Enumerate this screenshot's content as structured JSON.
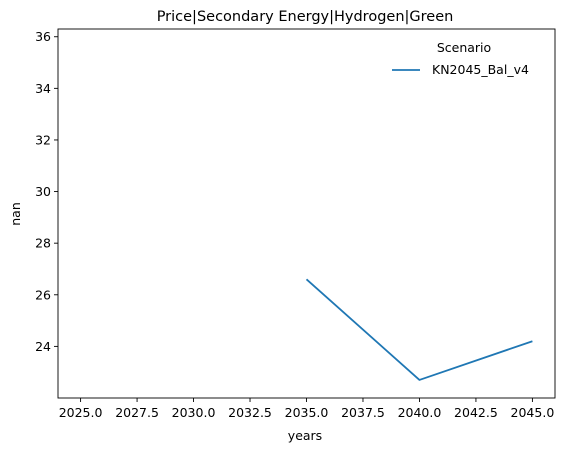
{
  "chart_data": {
    "type": "line",
    "title": "Price|Secondary Energy|Hydrogen|Green",
    "xlabel": "years",
    "ylabel": "nan",
    "xlim": [
      2024.0,
      2046.0
    ],
    "ylim": [
      22.0,
      36.3
    ],
    "xticks": [
      2025.0,
      2027.5,
      2030.0,
      2032.5,
      2035.0,
      2037.5,
      2040.0,
      2042.5,
      2045.0
    ],
    "xtick_labels": [
      "2025.0",
      "2027.5",
      "2030.0",
      "2032.5",
      "2035.0",
      "2037.5",
      "2040.0",
      "2042.5",
      "2045.0"
    ],
    "yticks": [
      24,
      26,
      28,
      30,
      32,
      34,
      36
    ],
    "ytick_labels": [
      "24",
      "26",
      "28",
      "30",
      "32",
      "34",
      "36"
    ],
    "grid": false,
    "legend": {
      "title": "Scenario",
      "placement": "top-right"
    },
    "series": [
      {
        "name": "KN2045_Bal_v4",
        "color": "#1f77b4",
        "x": [
          2035,
          2040,
          2045
        ],
        "y": [
          26.6,
          22.7,
          24.2
        ]
      }
    ]
  }
}
